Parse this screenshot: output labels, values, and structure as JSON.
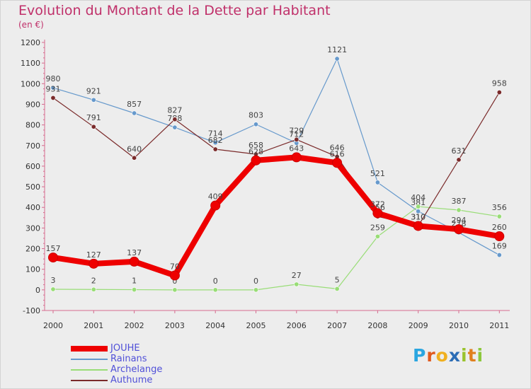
{
  "chart_data": {
    "type": "line",
    "title": "Evolution du Montant de la Dette par Habitant",
    "subtitle": "(en €)",
    "categories": [
      "2000",
      "2001",
      "2002",
      "2003",
      "2004",
      "2005",
      "2006",
      "2007",
      "2008",
      "2009",
      "2010",
      "2011"
    ],
    "ylim": [
      -100,
      1200
    ],
    "yticks": [
      -100,
      0,
      100,
      200,
      300,
      400,
      500,
      600,
      700,
      800,
      900,
      1000,
      1100,
      1200
    ],
    "grid": false,
    "legend_position": "bottom-left",
    "series": [
      {
        "name": "JOUHE",
        "color": "#ee0000",
        "values": [
          157,
          127,
          137,
          70,
          409,
          628,
          643,
          616,
          372,
          310,
          294,
          260
        ]
      },
      {
        "name": "Rainans",
        "color": "#6699cc",
        "values": [
          980,
          921,
          857,
          788,
          714,
          803,
          712,
          1121,
          521,
          381,
          278,
          169
        ]
      },
      {
        "name": "Archelange",
        "color": "#99dd77",
        "values": [
          3,
          2,
          1,
          0,
          0,
          0,
          27,
          5,
          259,
          404,
          387,
          356
        ]
      },
      {
        "name": "Authume",
        "color": "#7a2a2a",
        "values": [
          931,
          791,
          640,
          827,
          682,
          658,
          729,
          646,
          356,
          310,
          631,
          958
        ]
      }
    ]
  },
  "brand": {
    "letters": [
      "P",
      "r",
      "o",
      "x",
      "i",
      "t",
      "i"
    ],
    "colors": [
      "#2aa6e0",
      "#e05a1e",
      "#f0b020",
      "#2c6db5",
      "#9ac32e",
      "#e0801e",
      "#8cc83c"
    ]
  }
}
